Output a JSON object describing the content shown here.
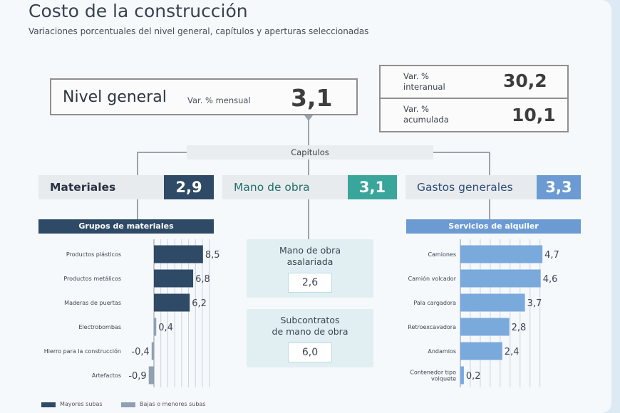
{
  "header": {
    "title": "Costo de la construcción",
    "subtitle": "Variaciones porcentuales del nivel general, capítulos y aperturas seleccionadas"
  },
  "nivel_general": {
    "label": "Nivel general",
    "sub_label": "Var. % mensual",
    "value": "3,1"
  },
  "variaciones": [
    {
      "label_1": "Var. %",
      "label_2": "interanual",
      "value": "30,2"
    },
    {
      "label_1": "Var. %",
      "label_2": "acumulada",
      "value": "10,1"
    }
  ],
  "capitulos_label": "Capítulos",
  "capitulos": [
    {
      "label": "Materiales",
      "value": "2,9"
    },
    {
      "label": "Mano de obra",
      "value": "3,1"
    },
    {
      "label": "Gastos generales",
      "value": "3,3"
    }
  ],
  "mano_de_obra": [
    {
      "title_1": "Mano de obra",
      "title_2": "asalariada",
      "value": "2,6"
    },
    {
      "title_1": "Subcontratos",
      "title_2": "de mano de obra",
      "value": "6,0"
    }
  ],
  "colors": {
    "materiales": "#2f4a66",
    "mano_de_obra": "#3aa59a",
    "gastos": "#6b9bd2",
    "materiales_light": "#8fa0b3",
    "gastos_bar": "#7aa9dc"
  },
  "legend": [
    {
      "label": "Mayores subas"
    },
    {
      "label": "Bajas o menores subas"
    }
  ],
  "chart_data": [
    {
      "type": "bar",
      "orientation": "horizontal",
      "title": "Grupos de materiales",
      "categories": [
        "Productos plásticos",
        "Productos metálicos",
        "Maderas de puertas",
        "Electrobombas",
        "Hierro para la construcción",
        "Artefactos"
      ],
      "values": [
        8.5,
        6.8,
        6.2,
        0.4,
        -0.4,
        -0.9
      ],
      "labels": [
        "8,5",
        "6,8",
        "6,2",
        "0,4",
        "-0,4",
        "-0,9"
      ],
      "grid": true
    },
    {
      "type": "bar",
      "orientation": "horizontal",
      "title": "Servicios de alquiler",
      "categories": [
        "Camiones",
        "Camión volcador",
        "Pala cargadora",
        "Retroexcavadora",
        "Andamios",
        "Contenedor tipo volquete"
      ],
      "values": [
        4.7,
        4.6,
        3.7,
        2.8,
        2.4,
        0.2
      ],
      "labels": [
        "4,7",
        "4,6",
        "3,7",
        "2,8",
        "2,4",
        "0,2"
      ],
      "grid": true
    }
  ]
}
